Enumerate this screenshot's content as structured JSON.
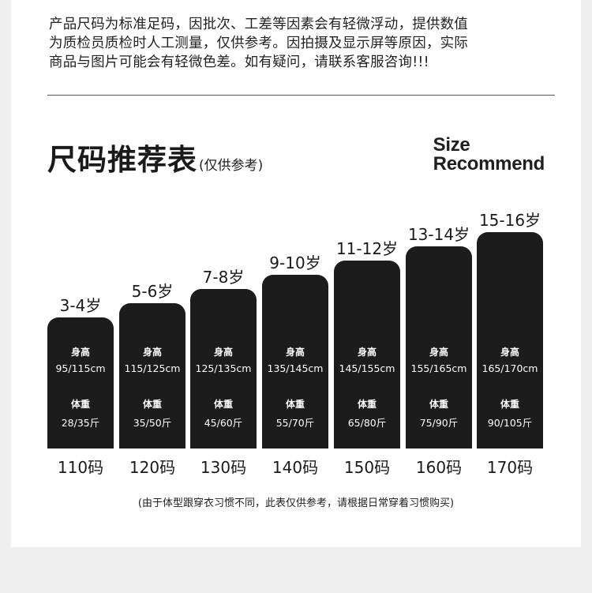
{
  "notice": {
    "lines": [
      "产品尺码为标准足码，因批次、工差等因素会有轻微浮动，提供数值",
      "为质检员质检时人工测量，仅供参考。因拍摄及显示屏等原因，实际",
      "商品与图片可能会有轻微色差。如有疑问，请联系客服咨询!!!"
    ]
  },
  "title": {
    "main": "尺码推荐表",
    "sub": "(仅供参考)"
  },
  "en_title": {
    "line1": "Size",
    "line2": "Recommend"
  },
  "labels": {
    "height": "身高",
    "weight": "体重"
  },
  "chart_data": {
    "type": "bar",
    "categories": [
      "110码",
      "120码",
      "130码",
      "140码",
      "150码",
      "160码",
      "170码"
    ],
    "ages": [
      "3-4岁",
      "5-6岁",
      "7-8岁",
      "9-10岁",
      "11-12岁",
      "13-14岁",
      "15-16岁"
    ],
    "heights": [
      "95/115cm",
      "115/125cm",
      "125/135cm",
      "135/145cm",
      "145/155cm",
      "155/165cm",
      "165/170cm"
    ],
    "weights": [
      "28/35斤",
      "35/50斤",
      "45/60斤",
      "55/70斤",
      "65/80斤",
      "75/90斤",
      "90/105斤"
    ],
    "values": [
      1,
      2,
      3,
      4,
      5,
      6,
      7
    ],
    "colors": {
      "bar": "#1c1c1c",
      "text": "#ffffff"
    }
  },
  "footnote": "(由于体型跟穿衣习惯不同，此表仅供参考，请根据日常穿着习惯购买)"
}
